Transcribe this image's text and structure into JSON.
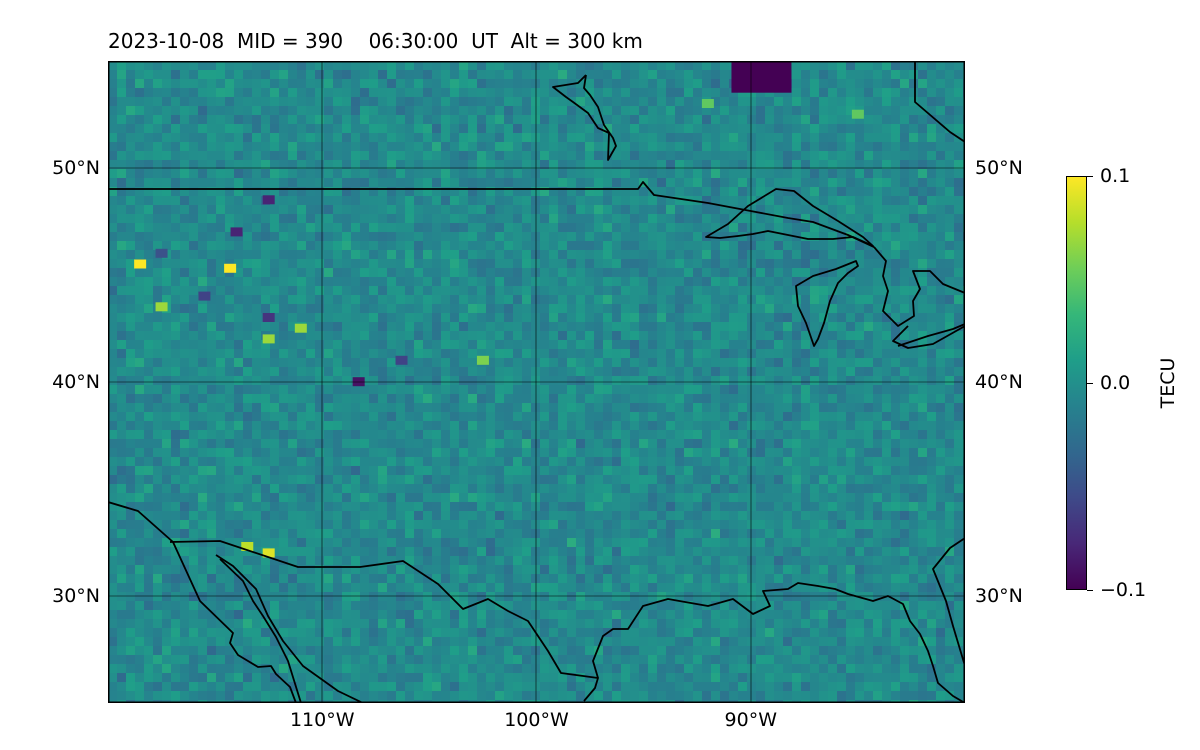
{
  "title": "2023-10-08  MID = 390    06:30:00  UT  Alt = 300 km",
  "map": {
    "lon_range": [
      -120,
      -80
    ],
    "lat_range": [
      25,
      55
    ],
    "lat_ticks": [
      {
        "value": 50,
        "label": "50°N"
      },
      {
        "value": 40,
        "label": "40°N"
      },
      {
        "value": 30,
        "label": "30°N"
      }
    ],
    "lon_ticks": [
      {
        "value": -110,
        "label": "110°W"
      },
      {
        "value": -100,
        "label": "100°W"
      },
      {
        "value": -90,
        "label": "90°W"
      }
    ],
    "gridlines": true,
    "background_level": -0.005
  },
  "colorbar": {
    "label": "TECU",
    "min": -0.1,
    "max": 0.1,
    "colormap": "viridis",
    "ticks": [
      {
        "value": 0.1,
        "label": "0.1"
      },
      {
        "value": 0.0,
        "label": "0.0"
      },
      {
        "value": -0.1,
        "label": "−0.1"
      }
    ]
  },
  "field_features": [
    {
      "lon": -89.5,
      "lat": 54.5,
      "value": -0.1
    },
    {
      "lon": -85,
      "lat": 52.5,
      "value": 0.05
    },
    {
      "lon": -92,
      "lat": 53,
      "value": 0.05
    },
    {
      "lon": -118.5,
      "lat": 45.5,
      "value": 0.1
    },
    {
      "lon": -114.3,
      "lat": 45.3,
      "value": 0.1
    },
    {
      "lon": -112.5,
      "lat": 32,
      "value": 0.09
    },
    {
      "lon": -113.5,
      "lat": 32.3,
      "value": 0.08
    },
    {
      "lon": -112.5,
      "lat": 42,
      "value": 0.07
    },
    {
      "lon": -117.5,
      "lat": 43.5,
      "value": 0.07
    },
    {
      "lon": -111,
      "lat": 42.5,
      "value": 0.07
    },
    {
      "lon": -114,
      "lat": 47,
      "value": -0.08
    },
    {
      "lon": -112.5,
      "lat": 48.5,
      "value": -0.08
    },
    {
      "lon": -115.5,
      "lat": 44,
      "value": -0.06
    },
    {
      "lon": -112.5,
      "lat": 43,
      "value": -0.07
    },
    {
      "lon": -108.3,
      "lat": 40,
      "value": -0.09
    },
    {
      "lon": -106.3,
      "lat": 41,
      "value": -0.06
    },
    {
      "lon": -102.5,
      "lat": 41,
      "value": 0.06
    },
    {
      "lon": -117.5,
      "lat": 46,
      "value": -0.05
    }
  ]
}
